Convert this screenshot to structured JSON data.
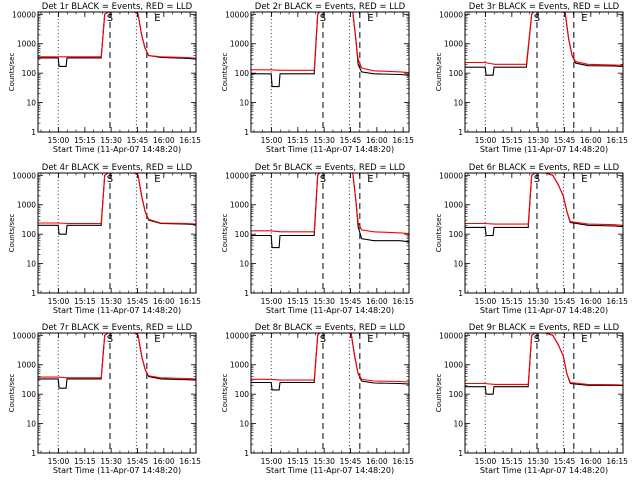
{
  "chart_data": [
    {
      "type": "line",
      "title": "Det 1r BLACK = Events, RED = LLD",
      "xlabel": "Start Time (11-Apr-07 14:48:20)",
      "ylabel": "Counts/sec",
      "x_ticks": [
        "15:00",
        "15:15",
        "15:30",
        "15:45",
        "16:00",
        "16:15"
      ],
      "y_ticks": [
        "1",
        "10",
        "100",
        "1000",
        "10000"
      ],
      "y_scale": "log",
      "xlim": [
        0,
        90
      ],
      "ylim": [
        1,
        12000
      ],
      "region_markers": [
        {
          "label": "S",
          "x": 41
        },
        {
          "label": "E",
          "x": 68
        }
      ],
      "dotted_lines": [
        11.5,
        56
      ],
      "dashed_lines": [
        41,
        62
      ],
      "series": [
        {
          "color": "#000000",
          "x": [
            0,
            10,
            11.5,
            12,
            16,
            16.5,
            36,
            38,
            40,
            41,
            44,
            55,
            57,
            59,
            61,
            63,
            70,
            85,
            90
          ],
          "y": [
            330,
            330,
            330,
            170,
            170,
            330,
            330,
            10000,
            12000,
            12000,
            12000,
            12000,
            10000,
            2000,
            700,
            400,
            340,
            320,
            300
          ]
        },
        {
          "color": "#ff0000",
          "x": [
            0,
            11,
            17,
            36,
            38,
            40,
            41,
            44,
            55,
            57,
            59,
            61,
            63,
            70,
            85,
            90
          ],
          "y": [
            360,
            360,
            360,
            360,
            10000,
            12000,
            12000,
            12000,
            12000,
            10000,
            2000,
            700,
            400,
            360,
            340,
            320
          ]
        }
      ]
    },
    {
      "type": "line",
      "title": "Det 2r BLACK = Events, RED = LLD",
      "xlabel": "Start Time (11-Apr-07 14:48:20)",
      "ylabel": "Counts/sec",
      "x_ticks": [
        "15:00",
        "15:15",
        "15:30",
        "15:45",
        "16:00",
        "16:15"
      ],
      "y_ticks": [
        "1",
        "10",
        "100",
        "1000",
        "10000"
      ],
      "y_scale": "log",
      "xlim": [
        0,
        90
      ],
      "ylim": [
        1,
        12000
      ],
      "region_markers": [
        {
          "label": "S",
          "x": 41
        },
        {
          "label": "E",
          "x": 68
        }
      ],
      "dotted_lines": [
        11.5,
        56
      ],
      "dashed_lines": [
        41,
        62
      ],
      "series": [
        {
          "color": "#000000",
          "x": [
            0,
            10,
            11.5,
            12,
            16,
            16.5,
            36,
            38,
            39,
            40,
            58,
            60,
            61,
            63,
            70,
            85,
            90
          ],
          "y": [
            95,
            95,
            95,
            35,
            35,
            95,
            95,
            10000,
            12000,
            12000,
            12000,
            1000,
            200,
            110,
            95,
            90,
            85
          ]
        },
        {
          "color": "#ff0000",
          "x": [
            0,
            11,
            17,
            36,
            38,
            39,
            40,
            58,
            60,
            61,
            63,
            70,
            85,
            90
          ],
          "y": [
            130,
            130,
            125,
            125,
            10000,
            12000,
            12000,
            12000,
            1000,
            300,
            150,
            120,
            110,
            105
          ]
        }
      ]
    },
    {
      "type": "line",
      "title": "Det 3r BLACK = Events, RED = LLD",
      "xlabel": "Start Time (11-Apr-07 14:48:20)",
      "ylabel": "Counts/sec",
      "x_ticks": [
        "15:00",
        "15:15",
        "15:30",
        "15:45",
        "16:00",
        "16:15"
      ],
      "y_ticks": [
        "1",
        "10",
        "100",
        "1000",
        "10000"
      ],
      "y_scale": "log",
      "xlim": [
        0,
        90
      ],
      "ylim": [
        1,
        12000
      ],
      "region_markers": [
        {
          "label": "S",
          "x": 41
        },
        {
          "label": "E",
          "x": 68
        }
      ],
      "dotted_lines": [
        11.5,
        56
      ],
      "dashed_lines": [
        41,
        62
      ],
      "series": [
        {
          "color": "#000000",
          "x": [
            0,
            10,
            11.5,
            12,
            16,
            16.5,
            35,
            38,
            39,
            40,
            57,
            59,
            61,
            63,
            70,
            85,
            90
          ],
          "y": [
            160,
            160,
            160,
            85,
            85,
            160,
            160,
            10000,
            12000,
            12000,
            12000,
            1500,
            400,
            220,
            180,
            175,
            170
          ]
        },
        {
          "color": "#ff0000",
          "x": [
            0,
            11,
            17,
            35,
            38,
            39,
            40,
            57,
            59,
            61,
            63,
            70,
            85,
            90
          ],
          "y": [
            230,
            230,
            200,
            200,
            10000,
            12000,
            12000,
            12000,
            1500,
            400,
            250,
            200,
            190,
            185
          ]
        }
      ]
    },
    {
      "type": "line",
      "title": "Det 4r BLACK = Events, RED = LLD",
      "xlabel": "Start Time (11-Apr-07 14:48:20)",
      "ylabel": "Counts/sec",
      "x_ticks": [
        "15:00",
        "15:15",
        "15:30",
        "15:45",
        "16:00",
        "16:15"
      ],
      "y_ticks": [
        "1",
        "10",
        "100",
        "1000",
        "10000"
      ],
      "y_scale": "log",
      "xlim": [
        0,
        90
      ],
      "ylim": [
        1,
        12000
      ],
      "region_markers": [
        {
          "label": "S",
          "x": 41
        },
        {
          "label": "E",
          "x": 68
        }
      ],
      "dotted_lines": [
        11.5,
        56
      ],
      "dashed_lines": [
        41,
        62
      ],
      "series": [
        {
          "color": "#000000",
          "x": [
            0,
            10,
            11.5,
            12,
            16,
            16.5,
            36,
            38,
            40,
            41,
            44,
            55,
            57,
            59,
            61,
            63,
            70,
            85,
            90
          ],
          "y": [
            200,
            200,
            200,
            100,
            100,
            200,
            200,
            10000,
            12000,
            12000,
            12000,
            12000,
            10000,
            2000,
            600,
            300,
            230,
            220,
            210
          ]
        },
        {
          "color": "#ff0000",
          "x": [
            0,
            11,
            17,
            36,
            38,
            40,
            41,
            44,
            55,
            57,
            59,
            61,
            63,
            70,
            85,
            90
          ],
          "y": [
            240,
            240,
            230,
            230,
            10000,
            12000,
            12000,
            12000,
            12000,
            10000,
            2000,
            600,
            320,
            240,
            230,
            220
          ]
        }
      ]
    },
    {
      "type": "line",
      "title": "Det 5r BLACK = Events, RED = LLD",
      "xlabel": "Start Time (11-Apr-07 14:48:20)",
      "ylabel": "Counts/sec",
      "x_ticks": [
        "15:00",
        "15:15",
        "15:30",
        "15:45",
        "16:00",
        "16:15"
      ],
      "y_ticks": [
        "1",
        "10",
        "100",
        "1000",
        "10000"
      ],
      "y_scale": "log",
      "xlim": [
        0,
        90
      ],
      "ylim": [
        1,
        12000
      ],
      "region_markers": [
        {
          "label": "S",
          "x": 41
        },
        {
          "label": "E",
          "x": 68
        }
      ],
      "dotted_lines": [
        11.5,
        56
      ],
      "dashed_lines": [
        41,
        62
      ],
      "series": [
        {
          "color": "#000000",
          "x": [
            0,
            10,
            11.5,
            12,
            16,
            16.5,
            36,
            38,
            39,
            40,
            58,
            60,
            61,
            63,
            70,
            85,
            90
          ],
          "y": [
            90,
            90,
            90,
            35,
            35,
            90,
            90,
            10000,
            12000,
            12000,
            12000,
            1000,
            180,
            70,
            60,
            60,
            55
          ]
        },
        {
          "color": "#ff0000",
          "x": [
            0,
            11,
            17,
            36,
            38,
            39,
            40,
            58,
            60,
            61,
            63,
            70,
            85,
            90
          ],
          "y": [
            130,
            130,
            120,
            120,
            10000,
            12000,
            12000,
            12000,
            1000,
            250,
            140,
            120,
            110,
            105
          ]
        }
      ]
    },
    {
      "type": "line",
      "title": "Det 6r BLACK = Events, RED = LLD",
      "xlabel": "Start Time (11-Apr-07 14:48:20)",
      "ylabel": "Counts/sec",
      "x_ticks": [
        "15:00",
        "15:15",
        "15:30",
        "15:45",
        "16:00",
        "16:15"
      ],
      "y_ticks": [
        "1",
        "10",
        "100",
        "1000",
        "10000"
      ],
      "y_scale": "log",
      "xlim": [
        0,
        90
      ],
      "ylim": [
        1,
        12000
      ],
      "region_markers": [
        {
          "label": "S",
          "x": 41
        },
        {
          "label": "E",
          "x": 68
        }
      ],
      "dotted_lines": [
        11.5,
        56
      ],
      "dashed_lines": [
        41,
        62
      ],
      "series": [
        {
          "color": "#000000",
          "x": [
            0,
            10,
            11.5,
            12,
            16,
            16.5,
            36,
            38,
            40,
            41,
            46,
            50,
            53,
            56,
            58,
            60,
            70,
            85,
            90
          ],
          "y": [
            170,
            170,
            170,
            90,
            90,
            170,
            170,
            10000,
            12000,
            12000,
            12000,
            10000,
            5000,
            2000,
            600,
            250,
            200,
            190,
            180
          ]
        },
        {
          "color": "#ff0000",
          "x": [
            0,
            11,
            17,
            36,
            38,
            40,
            41,
            46,
            50,
            53,
            56,
            58,
            60,
            70,
            85,
            90
          ],
          "y": [
            230,
            230,
            220,
            220,
            10000,
            12000,
            12000,
            12000,
            10000,
            5000,
            2000,
            600,
            270,
            220,
            210,
            200
          ]
        }
      ]
    },
    {
      "type": "line",
      "title": "Det 7r BLACK = Events, RED = LLD",
      "xlabel": "Start Time (11-Apr-07 14:48:20)",
      "ylabel": "Counts/sec",
      "x_ticks": [
        "15:00",
        "15:15",
        "15:30",
        "15:45",
        "16:00",
        "16:15"
      ],
      "y_ticks": [
        "1",
        "10",
        "100",
        "1000",
        "10000"
      ],
      "y_scale": "log",
      "xlim": [
        0,
        90
      ],
      "ylim": [
        1,
        12000
      ],
      "region_markers": [
        {
          "label": "S",
          "x": 41
        },
        {
          "label": "E",
          "x": 68
        }
      ],
      "dotted_lines": [
        11.5,
        56
      ],
      "dashed_lines": [
        41,
        62
      ],
      "series": [
        {
          "color": "#000000",
          "x": [
            0,
            10,
            11.5,
            12,
            16,
            16.5,
            36,
            38,
            40,
            41,
            44,
            55,
            57,
            59,
            61,
            63,
            70,
            85,
            90
          ],
          "y": [
            330,
            330,
            330,
            160,
            160,
            330,
            330,
            10000,
            12000,
            12000,
            12000,
            12000,
            10000,
            2000,
            700,
            400,
            330,
            310,
            300
          ]
        },
        {
          "color": "#ff0000",
          "x": [
            0,
            11,
            17,
            36,
            38,
            40,
            41,
            44,
            55,
            57,
            59,
            61,
            63,
            70,
            85,
            90
          ],
          "y": [
            380,
            380,
            360,
            360,
            10000,
            12000,
            12000,
            12000,
            12000,
            10000,
            2000,
            700,
            420,
            360,
            340,
            330
          ]
        }
      ]
    },
    {
      "type": "line",
      "title": "Det 8r BLACK = Events, RED = LLD",
      "xlabel": "Start Time (11-Apr-07 14:48:20)",
      "ylabel": "Counts/sec",
      "x_ticks": [
        "15:00",
        "15:15",
        "15:30",
        "15:45",
        "16:00",
        "16:15"
      ],
      "y_ticks": [
        "1",
        "10",
        "100",
        "1000",
        "10000"
      ],
      "y_scale": "log",
      "xlim": [
        0,
        90
      ],
      "ylim": [
        1,
        12000
      ],
      "region_markers": [
        {
          "label": "S",
          "x": 41
        },
        {
          "label": "E",
          "x": 68
        }
      ],
      "dotted_lines": [
        11.5,
        56
      ],
      "dashed_lines": [
        41,
        62
      ],
      "series": [
        {
          "color": "#000000",
          "x": [
            0,
            10,
            11.5,
            12,
            16,
            16.5,
            36,
            38,
            39,
            40,
            57,
            59,
            61,
            63,
            70,
            85,
            90
          ],
          "y": [
            250,
            250,
            250,
            140,
            140,
            250,
            250,
            10000,
            12000,
            12000,
            12000,
            2000,
            500,
            280,
            240,
            230,
            220
          ]
        },
        {
          "color": "#ff0000",
          "x": [
            0,
            11,
            17,
            36,
            38,
            39,
            40,
            57,
            59,
            61,
            63,
            70,
            85,
            90
          ],
          "y": [
            320,
            320,
            300,
            300,
            10000,
            12000,
            12000,
            12000,
            2000,
            500,
            320,
            280,
            270,
            260
          ]
        }
      ]
    },
    {
      "type": "line",
      "title": "Det 9r BLACK = Events, RED = LLD",
      "xlabel": "Start Time (11-Apr-07 14:48:20)",
      "ylabel": "Counts/sec",
      "x_ticks": [
        "15:00",
        "15:15",
        "15:30",
        "15:45",
        "16:00",
        "16:15"
      ],
      "y_ticks": [
        "1",
        "10",
        "100",
        "1000",
        "10000"
      ],
      "y_scale": "log",
      "xlim": [
        0,
        90
      ],
      "ylim": [
        1,
        12000
      ],
      "region_markers": [
        {
          "label": "S",
          "x": 41
        },
        {
          "label": "E",
          "x": 68
        }
      ],
      "dotted_lines": [
        11.5,
        56
      ],
      "dashed_lines": [
        41,
        62
      ],
      "series": [
        {
          "color": "#000000",
          "x": [
            0,
            10,
            11.5,
            12,
            16,
            16.5,
            36,
            38,
            40,
            41,
            46,
            50,
            53,
            56,
            58,
            60,
            70,
            85,
            90
          ],
          "y": [
            180,
            180,
            180,
            100,
            100,
            180,
            180,
            10000,
            12000,
            12000,
            12000,
            10000,
            5000,
            2000,
            500,
            230,
            200,
            200,
            195
          ]
        },
        {
          "color": "#ff0000",
          "x": [
            0,
            11,
            17,
            36,
            38,
            40,
            41,
            46,
            50,
            53,
            56,
            58,
            60,
            70,
            85,
            90
          ],
          "y": [
            230,
            230,
            215,
            215,
            10000,
            12000,
            12000,
            12000,
            10000,
            5000,
            2000,
            500,
            250,
            215,
            210,
            205
          ]
        }
      ]
    }
  ]
}
